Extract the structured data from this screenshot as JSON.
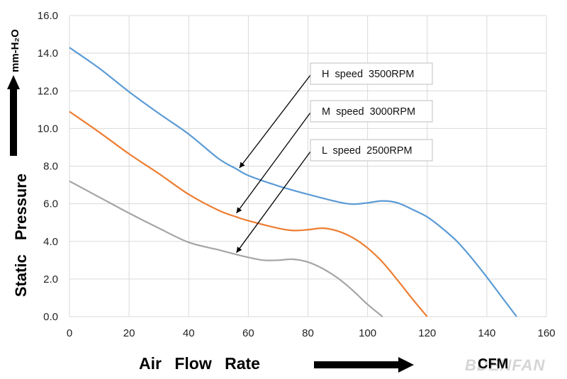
{
  "chart_data": {
    "type": "line",
    "xlabel": "Air Flow Rate",
    "xunit": "CFM",
    "ylabel": "Static Pressure",
    "yunit": "mm-H₂O",
    "xlim": [
      0,
      160
    ],
    "ylim": [
      0,
      16
    ],
    "xticks": [
      0,
      20,
      40,
      60,
      80,
      100,
      120,
      140,
      160
    ],
    "yticks": [
      "0.0",
      "2.0",
      "4.0",
      "6.0",
      "8.0",
      "10.0",
      "12.0",
      "14.0",
      "16.0"
    ],
    "grid": true,
    "series": [
      {
        "name": "H speed 3500RPM",
        "color": "#5b9bd5",
        "points": [
          [
            0,
            14.3
          ],
          [
            10,
            13.2
          ],
          [
            20,
            11.95
          ],
          [
            30,
            10.8
          ],
          [
            40,
            9.7
          ],
          [
            50,
            8.4
          ],
          [
            56,
            7.85
          ],
          [
            60,
            7.5
          ],
          [
            70,
            6.95
          ],
          [
            80,
            6.5
          ],
          [
            90,
            6.1
          ],
          [
            95,
            5.98
          ],
          [
            100,
            6.05
          ],
          [
            105,
            6.15
          ],
          [
            110,
            6.05
          ],
          [
            115,
            5.7
          ],
          [
            120,
            5.3
          ],
          [
            125,
            4.7
          ],
          [
            130,
            4.0
          ],
          [
            135,
            3.1
          ],
          [
            140,
            2.1
          ],
          [
            145,
            1.05
          ],
          [
            150,
            0.0
          ]
        ]
      },
      {
        "name": "M speed 3000RPM",
        "color": "#ed7d31",
        "points": [
          [
            0,
            10.9
          ],
          [
            10,
            9.8
          ],
          [
            20,
            8.65
          ],
          [
            30,
            7.6
          ],
          [
            40,
            6.5
          ],
          [
            50,
            5.65
          ],
          [
            56,
            5.3
          ],
          [
            60,
            5.1
          ],
          [
            70,
            4.7
          ],
          [
            75,
            4.58
          ],
          [
            80,
            4.62
          ],
          [
            85,
            4.7
          ],
          [
            90,
            4.55
          ],
          [
            95,
            4.2
          ],
          [
            100,
            3.65
          ],
          [
            105,
            2.9
          ],
          [
            110,
            1.95
          ],
          [
            115,
            0.95
          ],
          [
            120,
            0.0
          ]
        ]
      },
      {
        "name": "L speed 2500RPM",
        "color": "#a5a5a5",
        "points": [
          [
            0,
            7.2
          ],
          [
            10,
            6.35
          ],
          [
            20,
            5.5
          ],
          [
            30,
            4.7
          ],
          [
            40,
            3.95
          ],
          [
            50,
            3.55
          ],
          [
            56,
            3.3
          ],
          [
            60,
            3.15
          ],
          [
            65,
            3.0
          ],
          [
            70,
            3.0
          ],
          [
            75,
            3.05
          ],
          [
            80,
            2.9
          ],
          [
            85,
            2.55
          ],
          [
            90,
            2.05
          ],
          [
            95,
            1.4
          ],
          [
            100,
            0.65
          ],
          [
            105,
            0.0
          ]
        ]
      }
    ],
    "annotations": [
      {
        "text": "H speed  3500RPM",
        "series": 0,
        "arrow_to": [
          57,
          7.9
        ]
      },
      {
        "text": "M speed  3000RPM",
        "series": 1,
        "arrow_to": [
          56,
          5.5
        ]
      },
      {
        "text": "L speed  2500RPM",
        "series": 2,
        "arrow_to": [
          56,
          3.4
        ]
      }
    ]
  },
  "brand": "BDENFAN"
}
